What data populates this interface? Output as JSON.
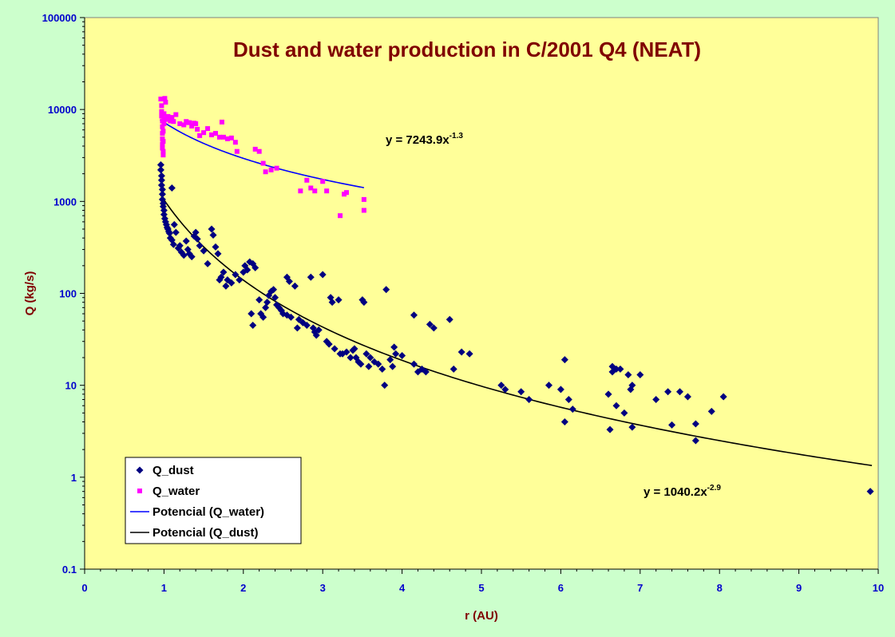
{
  "chart_data": {
    "type": "scatter",
    "title": "Dust and water production in C/2001 Q4 (NEAT)",
    "xlabel": "r (AU)",
    "ylabel": "Q (kg/s)",
    "xlim": [
      0,
      10
    ],
    "ylim": [
      0.1,
      100000
    ],
    "yscale": "log",
    "x_ticks": [
      "0",
      "1",
      "2",
      "3",
      "4",
      "5",
      "6",
      "7",
      "8",
      "9",
      "10"
    ],
    "y_ticks": [
      "0.1",
      "1",
      "10",
      "100",
      "1000",
      "10000",
      "100000"
    ],
    "grid": false,
    "legend_position": "bottom-left",
    "colors": {
      "plot_background": "#ffff99",
      "page_background": "#ccffcc",
      "title": "#800000",
      "ticks": "#0000cc",
      "dust": "#000080",
      "water": "#ff00ff",
      "water_fit": "#0000ff",
      "dust_fit": "#000000"
    },
    "legend": [
      {
        "label": "Q_dust",
        "kind": "diamond",
        "color": "#000080"
      },
      {
        "label": "Q_water",
        "kind": "square",
        "color": "#ff00ff"
      },
      {
        "label": "Potencial (Q_water)",
        "kind": "line",
        "color": "#0000ff"
      },
      {
        "label": "Potencial (Q_dust)",
        "kind": "line",
        "color": "#000000"
      }
    ],
    "fits": [
      {
        "name": "Potencial (Q_water)",
        "a": 7243.9,
        "b": -1.3,
        "x_range": [
          0.95,
          3.52
        ],
        "color": "#0000ff"
      },
      {
        "name": "Potencial (Q_dust)",
        "a": 1040.2,
        "b": -2.9,
        "x_range": [
          0.95,
          9.92
        ],
        "color": "#000000"
      }
    ],
    "annotations": {
      "water_eq": {
        "base": "y = 7243.9x",
        "exp": "-1.3"
      },
      "dust_eq": {
        "base": "y = 1040.2x",
        "exp": "-2.9"
      }
    },
    "series": [
      {
        "name": "Q_water",
        "marker": "square",
        "color": "#ff00ff",
        "points": [
          [
            0.96,
            13000
          ],
          [
            0.97,
            11000
          ],
          [
            0.97,
            9500
          ],
          [
            0.97,
            8500
          ],
          [
            0.98,
            7500
          ],
          [
            0.98,
            6500
          ],
          [
            0.98,
            5500
          ],
          [
            0.98,
            4800
          ],
          [
            0.98,
            4200
          ],
          [
            0.98,
            3800
          ],
          [
            0.99,
            3500
          ],
          [
            0.99,
            3200
          ],
          [
            0.99,
            4500
          ],
          [
            0.99,
            5800
          ],
          [
            1.0,
            7000
          ],
          [
            1.0,
            8000
          ],
          [
            1.0,
            9000
          ],
          [
            1.01,
            13200
          ],
          [
            1.02,
            12000
          ],
          [
            1.03,
            7800
          ],
          [
            1.05,
            8400
          ],
          [
            1.08,
            7500
          ],
          [
            1.1,
            8200
          ],
          [
            1.12,
            7400
          ],
          [
            1.15,
            8800
          ],
          [
            1.2,
            7000
          ],
          [
            1.25,
            6800
          ],
          [
            1.28,
            7400
          ],
          [
            1.3,
            7200
          ],
          [
            1.32,
            7200
          ],
          [
            1.35,
            6600
          ],
          [
            1.38,
            7100
          ],
          [
            1.4,
            7000
          ],
          [
            1.42,
            6100
          ],
          [
            1.45,
            5200
          ],
          [
            1.5,
            5600
          ],
          [
            1.55,
            6200
          ],
          [
            1.6,
            5300
          ],
          [
            1.65,
            5500
          ],
          [
            1.7,
            5000
          ],
          [
            1.73,
            7300
          ],
          [
            1.75,
            5000
          ],
          [
            1.8,
            4800
          ],
          [
            1.85,
            4900
          ],
          [
            1.9,
            4400
          ],
          [
            1.92,
            3500
          ],
          [
            2.15,
            3700
          ],
          [
            2.2,
            3500
          ],
          [
            2.25,
            2600
          ],
          [
            2.28,
            2100
          ],
          [
            2.35,
            2200
          ],
          [
            2.42,
            2300
          ],
          [
            2.72,
            1300
          ],
          [
            2.8,
            1700
          ],
          [
            2.85,
            1400
          ],
          [
            2.9,
            1300
          ],
          [
            3.0,
            1650
          ],
          [
            3.05,
            1300
          ],
          [
            3.22,
            700
          ],
          [
            3.27,
            1200
          ],
          [
            3.3,
            1250
          ],
          [
            3.52,
            800
          ],
          [
            3.52,
            1050
          ]
        ]
      },
      {
        "name": "Q_dust",
        "marker": "diamond",
        "color": "#000080",
        "points": [
          [
            0.96,
            2500
          ],
          [
            0.96,
            2200
          ],
          [
            0.97,
            1900
          ],
          [
            0.97,
            1700
          ],
          [
            0.97,
            1500
          ],
          [
            0.98,
            1350
          ],
          [
            0.98,
            1200
          ],
          [
            0.98,
            1050
          ],
          [
            0.99,
            950
          ],
          [
            0.99,
            880
          ],
          [
            1.0,
            800
          ],
          [
            1.0,
            720
          ],
          [
            1.01,
            650
          ],
          [
            1.02,
            600
          ],
          [
            1.03,
            560
          ],
          [
            1.04,
            520
          ],
          [
            1.05,
            500
          ],
          [
            1.06,
            470
          ],
          [
            1.07,
            450
          ],
          [
            1.08,
            400
          ],
          [
            1.1,
            1400
          ],
          [
            1.1,
            380
          ],
          [
            1.12,
            340
          ],
          [
            1.13,
            560
          ],
          [
            1.15,
            460
          ],
          [
            1.18,
            310
          ],
          [
            1.2,
            330
          ],
          [
            1.22,
            280
          ],
          [
            1.25,
            260
          ],
          [
            1.28,
            370
          ],
          [
            1.3,
            300
          ],
          [
            1.32,
            270
          ],
          [
            1.35,
            250
          ],
          [
            1.38,
            420
          ],
          [
            1.4,
            460
          ],
          [
            1.42,
            390
          ],
          [
            1.45,
            330
          ],
          [
            1.5,
            290
          ],
          [
            1.55,
            210
          ],
          [
            1.6,
            500
          ],
          [
            1.62,
            430
          ],
          [
            1.65,
            320
          ],
          [
            1.68,
            270
          ],
          [
            1.7,
            140
          ],
          [
            1.72,
            150
          ],
          [
            1.75,
            170
          ],
          [
            1.78,
            120
          ],
          [
            1.8,
            140
          ],
          [
            1.85,
            130
          ],
          [
            1.9,
            160
          ],
          [
            1.95,
            140
          ],
          [
            2.0,
            170
          ],
          [
            2.02,
            200
          ],
          [
            2.05,
            180
          ],
          [
            2.08,
            220
          ],
          [
            2.12,
            210
          ],
          [
            2.15,
            190
          ],
          [
            2.1,
            60
          ],
          [
            2.12,
            45
          ],
          [
            2.2,
            85
          ],
          [
            2.22,
            60
          ],
          [
            2.25,
            55
          ],
          [
            2.28,
            70
          ],
          [
            2.3,
            80
          ],
          [
            2.32,
            95
          ],
          [
            2.35,
            105
          ],
          [
            2.38,
            110
          ],
          [
            2.4,
            90
          ],
          [
            2.42,
            75
          ],
          [
            2.45,
            70
          ],
          [
            2.48,
            65
          ],
          [
            2.5,
            60
          ],
          [
            2.55,
            58
          ],
          [
            2.55,
            150
          ],
          [
            2.58,
            135
          ],
          [
            2.6,
            55
          ],
          [
            2.65,
            120
          ],
          [
            2.68,
            42
          ],
          [
            2.7,
            52
          ],
          [
            2.75,
            48
          ],
          [
            2.8,
            45
          ],
          [
            2.85,
            150
          ],
          [
            2.88,
            42
          ],
          [
            2.9,
            38
          ],
          [
            2.92,
            35
          ],
          [
            2.95,
            40
          ],
          [
            3.0,
            160
          ],
          [
            3.05,
            30
          ],
          [
            3.08,
            28
          ],
          [
            3.1,
            90
          ],
          [
            3.12,
            80
          ],
          [
            3.15,
            25
          ],
          [
            3.2,
            85
          ],
          [
            3.22,
            22
          ],
          [
            3.25,
            22
          ],
          [
            3.3,
            23
          ],
          [
            3.35,
            20
          ],
          [
            3.38,
            24
          ],
          [
            3.4,
            25
          ],
          [
            3.42,
            20
          ],
          [
            3.45,
            18
          ],
          [
            3.48,
            17
          ],
          [
            3.5,
            85
          ],
          [
            3.52,
            80
          ],
          [
            3.55,
            22
          ],
          [
            3.58,
            16
          ],
          [
            3.6,
            20
          ],
          [
            3.65,
            18
          ],
          [
            3.7,
            17
          ],
          [
            3.75,
            15
          ],
          [
            3.78,
            10
          ],
          [
            3.8,
            110
          ],
          [
            3.85,
            19
          ],
          [
            3.88,
            16
          ],
          [
            3.9,
            26
          ],
          [
            3.92,
            22
          ],
          [
            4.0,
            21
          ],
          [
            4.15,
            58
          ],
          [
            4.15,
            17
          ],
          [
            4.2,
            14
          ],
          [
            4.25,
            15
          ],
          [
            4.3,
            14
          ],
          [
            4.35,
            46
          ],
          [
            4.4,
            42
          ],
          [
            4.6,
            52
          ],
          [
            4.65,
            15
          ],
          [
            4.75,
            23
          ],
          [
            4.85,
            22
          ],
          [
            5.25,
            10
          ],
          [
            5.3,
            9
          ],
          [
            5.5,
            8.5
          ],
          [
            5.6,
            7
          ],
          [
            5.85,
            10
          ],
          [
            6.0,
            9
          ],
          [
            6.05,
            19
          ],
          [
            6.05,
            4
          ],
          [
            6.1,
            7
          ],
          [
            6.15,
            5.5
          ],
          [
            6.6,
            8
          ],
          [
            6.62,
            3.3
          ],
          [
            6.65,
            14
          ],
          [
            6.65,
            16
          ],
          [
            6.7,
            6
          ],
          [
            6.7,
            15
          ],
          [
            6.75,
            15
          ],
          [
            6.8,
            5
          ],
          [
            6.85,
            13
          ],
          [
            6.88,
            9
          ],
          [
            6.9,
            10
          ],
          [
            6.9,
            3.5
          ],
          [
            7.0,
            13
          ],
          [
            7.2,
            7
          ],
          [
            7.35,
            8.5
          ],
          [
            7.4,
            3.7
          ],
          [
            7.5,
            8.5
          ],
          [
            7.6,
            7.5
          ],
          [
            7.7,
            3.8
          ],
          [
            7.7,
            2.5
          ],
          [
            7.9,
            5.2
          ],
          [
            8.05,
            7.5
          ],
          [
            9.9,
            0.7
          ]
        ]
      }
    ]
  }
}
